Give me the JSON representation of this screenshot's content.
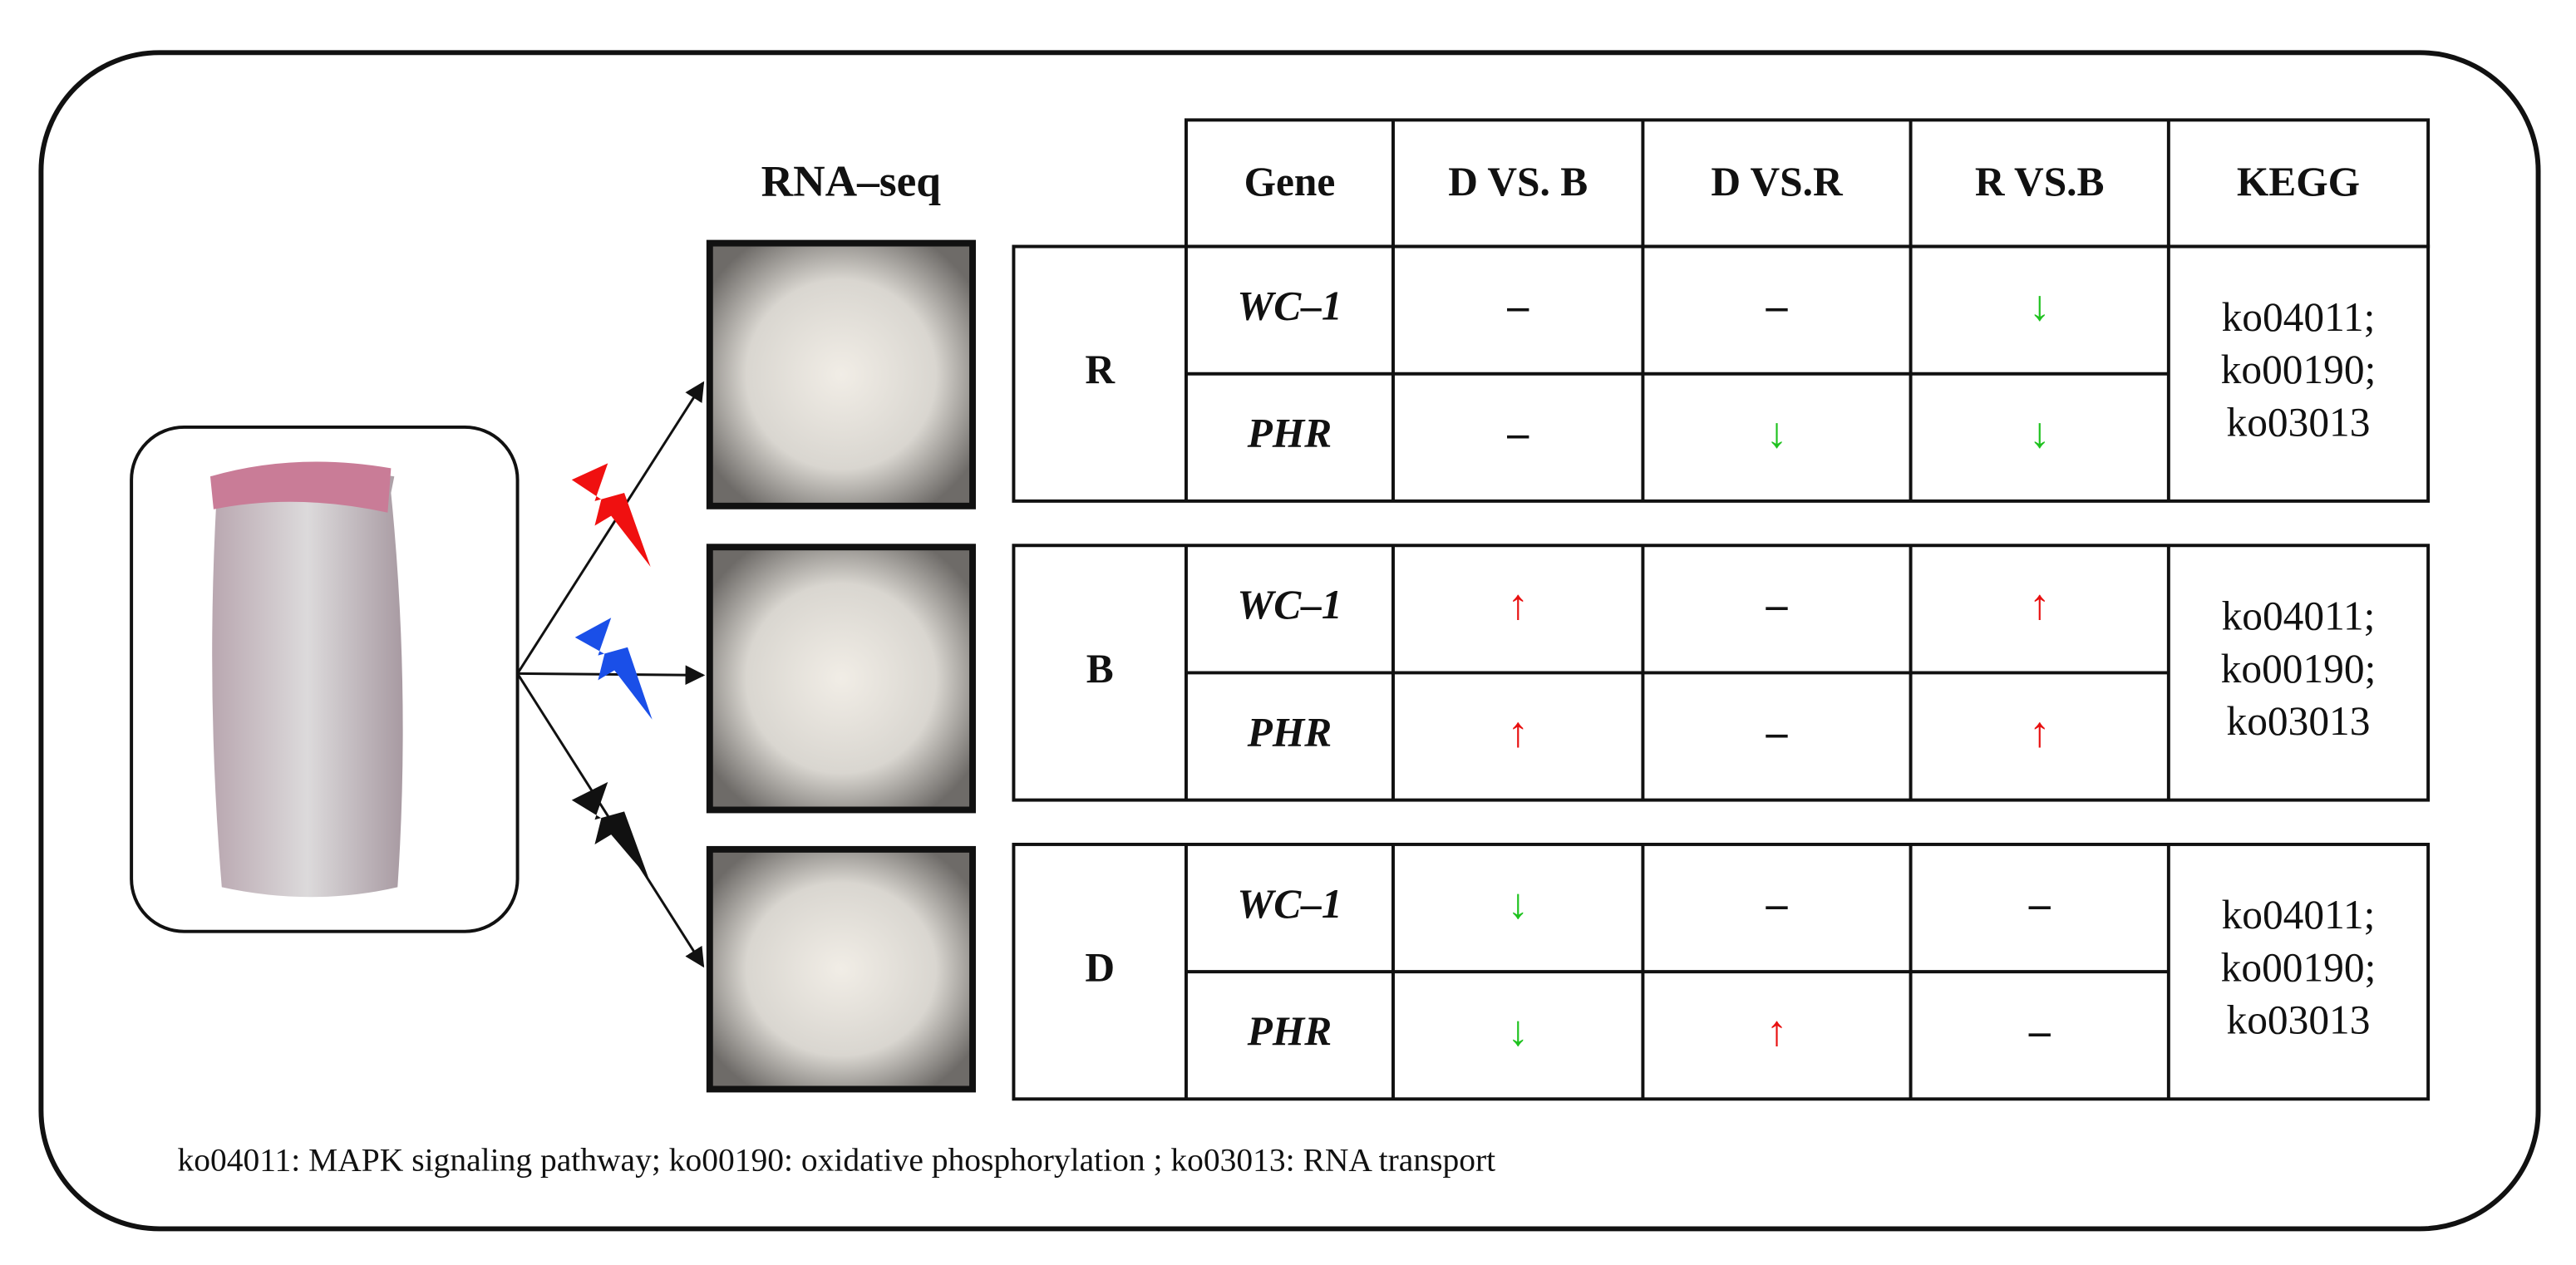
{
  "rna_seq_label": "RNA–seq",
  "table": {
    "header": [
      "Gene",
      "D VS. B",
      "D VS.R",
      "R VS.B",
      "KEGG"
    ],
    "groups": [
      {
        "label": "R",
        "rows": [
          {
            "gene": "WC–1",
            "cells": [
              {
                "text": "–",
                "color": "#111111"
              },
              {
                "text": "–",
                "color": "#111111"
              },
              {
                "text": "↓",
                "color": "#1fc21f"
              }
            ]
          },
          {
            "gene": "PHR",
            "cells": [
              {
                "text": "–",
                "color": "#111111"
              },
              {
                "text": "↓",
                "color": "#1fc21f"
              },
              {
                "text": "↓",
                "color": "#1fc21f"
              }
            ]
          }
        ],
        "kegg": [
          "ko04011;",
          "ko00190;",
          "ko03013"
        ]
      },
      {
        "label": "B",
        "rows": [
          {
            "gene": "WC–1",
            "cells": [
              {
                "text": "↑",
                "color": "#e81010"
              },
              {
                "text": "–",
                "color": "#111111"
              },
              {
                "text": "↑",
                "color": "#e81010"
              }
            ]
          },
          {
            "gene": "PHR",
            "cells": [
              {
                "text": "↑",
                "color": "#e81010"
              },
              {
                "text": "–",
                "color": "#111111"
              },
              {
                "text": "↑",
                "color": "#e81010"
              }
            ]
          }
        ],
        "kegg": [
          "ko04011;",
          "ko00190;",
          "ko03013"
        ]
      },
      {
        "label": "D",
        "rows": [
          {
            "gene": "WC–1",
            "cells": [
              {
                "text": "↓",
                "color": "#1fc21f"
              },
              {
                "text": "–",
                "color": "#111111"
              },
              {
                "text": "–",
                "color": "#111111"
              }
            ]
          },
          {
            "gene": "PHR",
            "cells": [
              {
                "text": "↓",
                "color": "#1fc21f"
              },
              {
                "text": "↑",
                "color": "#e81010"
              },
              {
                "text": "–",
                "color": "#111111"
              }
            ]
          }
        ],
        "kegg": [
          "ko04011;",
          "ko00190;",
          "ko03013"
        ]
      }
    ]
  },
  "footnote": "ko04011: MAPK signaling pathway; ko00190: oxidative phosphorylation ; ko03013: RNA transport"
}
